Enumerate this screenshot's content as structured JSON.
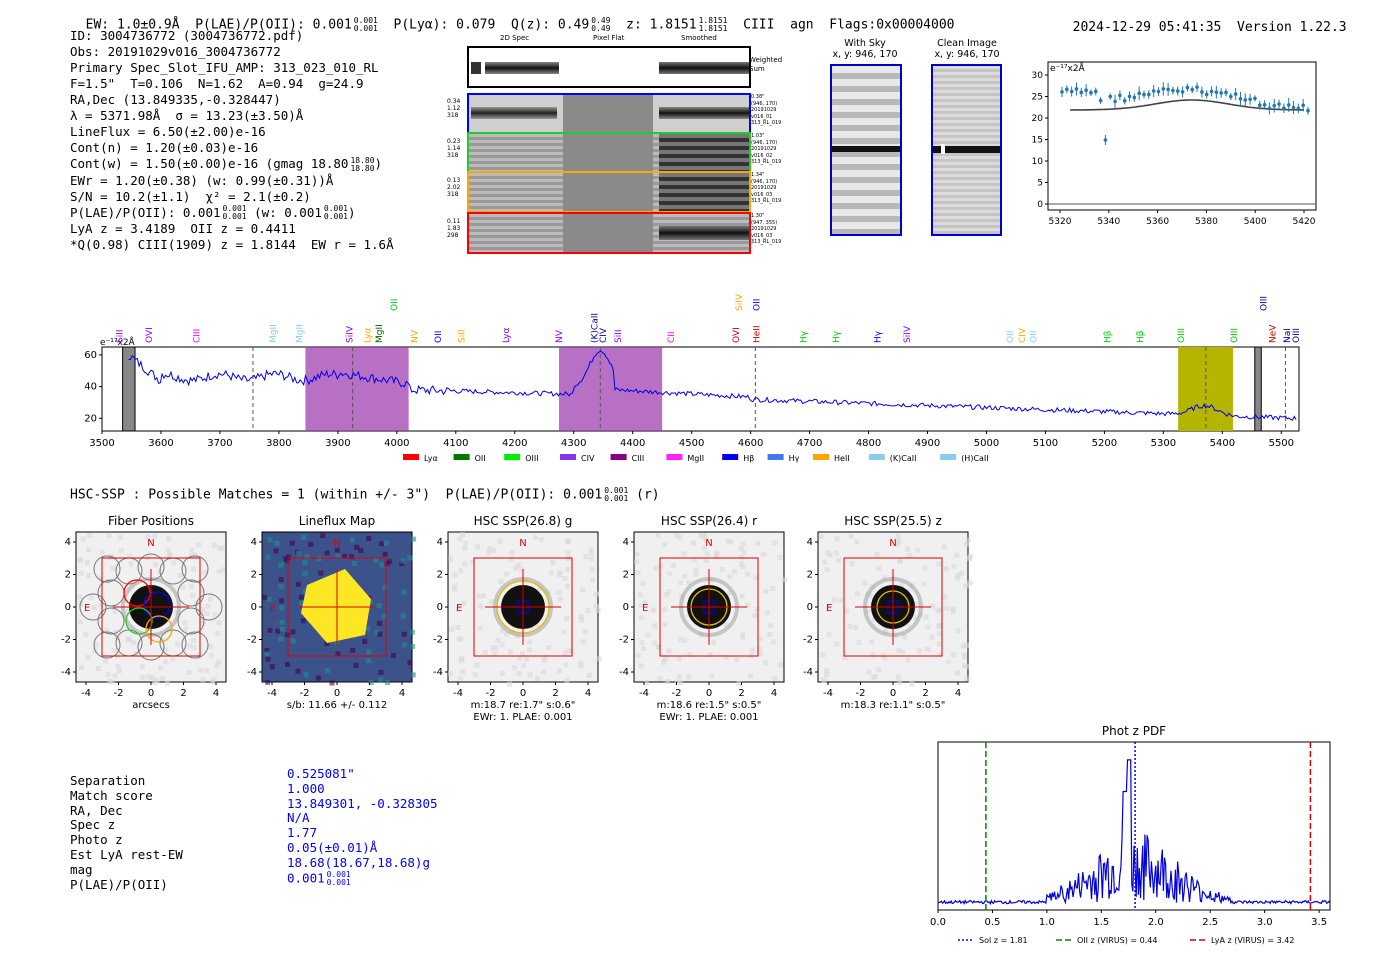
{
  "header": {
    "line": "EW: 1.0±0.9Å  P(LAE)/P(OII): 0.001 0.001 0.001  P(Lyα): 0.079  Q(z): 0.49 0.49 0.49  z: 1.8151 1.8151 1.8151  CIII  agn  Flags:0x00004000",
    "ew": "EW: 1.0±0.9Å",
    "plae": "P(LAE)/P(OII): 0.001",
    "plae_sup": "0.001",
    "plae_sub": "0.001",
    "plya": "P(Lyα): 0.079",
    "qz": "Q(z): 0.49",
    "qz_sup": "0.49",
    "qz_sub": "0.49",
    "z": "z: 1.8151",
    "z_sup": "1.8151",
    "z_sub": "1.8151",
    "line_id": "CIII",
    "cls": "agn",
    "flags": "Flags:0x00004000",
    "timestamp": "2024-12-29 05:41:35",
    "version": "Version 1.22.3"
  },
  "info": {
    "lines": [
      "ID: 3004736772 (3004736772.pdf)",
      "Obs: 20191029v016_3004736772",
      "Primary Spec_Slot_IFU_AMP: 313_023_010_RL",
      "F=1.5\"  T=0.106  N=1.62  A=0.94  g=24.9",
      "RA,Dec (13.849335,-0.328447)",
      "λ = 5371.98Å  σ = 13.23(±3.50)Å",
      "LineFlux = 6.50(±2.00)e-16",
      "Cont(n) = 1.20(±0.03)e-16",
      "Cont(w) = 1.50(±0.00)e-16 (gmag 18.80",
      "EWr = 1.20(±0.38) (w: 0.99(±0.31))Å",
      "S/N = 10.2(±1.1)  χ² = 2.1(±0.2)",
      "P(LAE)/P(OII): 0.001",
      "LyA z = 3.4189  OII z = 0.4411",
      "*Q(0.98) CIII(1909) z = 1.8144  EW r = 1.6Å"
    ],
    "gmag_sup": "18.80",
    "gmag_sub": "18.80",
    "plae_sup": "0.001",
    "plae_sub": "0.001",
    "plae_w": "(w: 0.001",
    "plae_w_sup": "0.001",
    "plae_w_sub": "0.001"
  },
  "cutouts": {
    "col_headers": [
      "2D Spec",
      "Pixel Flat",
      "Smoothed"
    ],
    "weighted_sum": "Weighted Sum",
    "rows": [
      {
        "left": [
          "0.34",
          "1.12",
          "318"
        ],
        "right": [
          "0.38\"",
          "(946, 170)",
          "20191029",
          "v016_01",
          "313_RL_019"
        ],
        "color": "#0000ff"
      },
      {
        "left": [
          "0.23",
          "1.14",
          "318"
        ],
        "right": [
          "1.03\"",
          "(946, 170)",
          "20191029",
          "v016_02",
          "313_RL_019"
        ],
        "color": "#22cc22"
      },
      {
        "left": [
          "0.13",
          "2.02",
          "318"
        ],
        "right": [
          "1.34\"",
          "(946, 170)",
          "20191029",
          "v016_03",
          "313_RL_019"
        ],
        "color": "#ffa500"
      },
      {
        "left": [
          "0.11",
          "1.83",
          "298"
        ],
        "right": [
          "1.30\"",
          "(947, 355)",
          "20191029",
          "v016_03",
          "313_RL_019"
        ],
        "color": "#ff0000"
      }
    ],
    "with_sky": "With Sky",
    "with_sky_xy": "x, y: 946, 170",
    "clean": "Clean Image",
    "clean_xy": "x, y: 946, 170"
  },
  "zoom_plot": {
    "ylabel": "e⁻¹⁷x2Å",
    "x_ticks": [
      "5320",
      "5340",
      "5360",
      "5380",
      "5400",
      "5420"
    ],
    "y_ticks": [
      "0",
      "5",
      "10",
      "15",
      "20",
      "25",
      "30"
    ]
  },
  "spectrum": {
    "ylabel": "e⁻¹⁷x2Å",
    "x_ticks": [
      "3500",
      "3600",
      "3700",
      "3800",
      "3900",
      "4000",
      "4100",
      "4200",
      "4300",
      "4400",
      "4500",
      "4600",
      "4700",
      "4800",
      "4900",
      "5000",
      "5100",
      "5200",
      "5300",
      "5400",
      "5500"
    ],
    "y_ticks": [
      "20",
      "40",
      "60"
    ],
    "line_labels": [
      {
        "t": "SiII",
        "c": "#8b00ff"
      },
      {
        "t": "OVI",
        "c": "#8b00ff"
      },
      {
        "t": "CIII",
        "c": "#ff00ff"
      },
      {
        "t": "MgII",
        "c": "#88ccee"
      },
      {
        "t": "MgII",
        "c": "#88ccee"
      },
      {
        "t": "SiIV",
        "c": "#8b00ff"
      },
      {
        "t": "Lyα",
        "c": "#ffa500"
      },
      {
        "t": "MgII",
        "c": "#006400"
      },
      {
        "t": "OII",
        "c": "#00cc00"
      },
      {
        "t": "NV",
        "c": "#ffa500"
      },
      {
        "t": "OII",
        "c": "#0000ff"
      },
      {
        "t": "SiII",
        "c": "#ffa500"
      },
      {
        "t": "Lyα",
        "c": "#8b00ff"
      },
      {
        "t": "NV",
        "c": "#8b00ff"
      },
      {
        "t": "(K)CaII",
        "c": "#0000aa"
      },
      {
        "t": "CIV",
        "c": "#0000aa"
      },
      {
        "t": "SiII",
        "c": "#8b00ff"
      },
      {
        "t": "CII",
        "c": "#ff00ff"
      },
      {
        "t": "OVI",
        "c": "#cc0000"
      },
      {
        "t": "SiIV",
        "c": "#ffa500"
      },
      {
        "t": "HeII",
        "c": "#cc0000"
      },
      {
        "t": "OII",
        "c": "#0000ff"
      },
      {
        "t": "Hγ",
        "c": "#00cc00"
      },
      {
        "t": "Hγ",
        "c": "#00cc00"
      },
      {
        "t": "Hγ",
        "c": "#0000ff"
      },
      {
        "t": "SiIV",
        "c": "#8b00ff"
      },
      {
        "t": "OII",
        "c": "#88ccee"
      },
      {
        "t": "CIV",
        "c": "#ffa500"
      },
      {
        "t": "OII",
        "c": "#88ccee"
      },
      {
        "t": "Hβ",
        "c": "#00cc00"
      },
      {
        "t": "Hβ",
        "c": "#00cc00"
      },
      {
        "t": "OIII",
        "c": "#00cc00"
      },
      {
        "t": "OIII",
        "c": "#00cc00"
      },
      {
        "t": "OIII",
        "c": "#0000aa"
      },
      {
        "t": "NeV",
        "c": "#cc0000"
      },
      {
        "t": "NaI",
        "c": "#0000aa"
      },
      {
        "t": "OIII",
        "c": "#0000aa"
      }
    ],
    "legend": [
      {
        "name": "Lyα",
        "color": "#ff0000"
      },
      {
        "name": "OII",
        "color": "#007700"
      },
      {
        "name": "OIII",
        "color": "#00ee00"
      },
      {
        "name": "CIV",
        "color": "#8833ee"
      },
      {
        "name": "CIII",
        "color": "#880088"
      },
      {
        "name": "MgII",
        "color": "#ff22ff"
      },
      {
        "name": "Hβ",
        "color": "#0000ee"
      },
      {
        "name": "Hγ",
        "color": "#4477ee"
      },
      {
        "name": "HeII",
        "color": "#ffa500"
      },
      {
        "name": "(K)CaII",
        "color": "#88ccee"
      },
      {
        "name": "(H)CaII",
        "color": "#88ccee"
      }
    ]
  },
  "hsc": {
    "title": "HSC-SSP : Possible Matches = 1 (within +/- 3\")  P(LAE)/P(OII): 0.001",
    "title_sup": "0.001",
    "title_sub": "0.001",
    "title_suffix": "(r)",
    "panels": [
      {
        "title": "Fiber Positions",
        "xlabel": "arcsecs",
        "sub": ""
      },
      {
        "title": "Lineflux Map",
        "xlabel": "",
        "sub": "s/b: 11.66 +/- 0.112"
      },
      {
        "title": "HSC SSP(26.8) g",
        "xlabel": "",
        "sub": "m:18.7  re:1.7\"  s:0.6\"",
        "sub2": "EWr: 1. PLAE: 0.001"
      },
      {
        "title": "HSC SSP(26.4) r",
        "xlabel": "",
        "sub": "m:18.6  re:1.5\"  s:0.5\"",
        "sub2": "EWr: 1. PLAE: 0.001"
      },
      {
        "title": "HSC SSP(25.5) z",
        "xlabel": "",
        "sub": "m:18.3  re:1.1\"  s:0.5\"",
        "sub2": ""
      }
    ],
    "ticks": [
      "-4",
      "-2",
      "0",
      "2",
      "4"
    ],
    "north": "N",
    "east": "E"
  },
  "match": {
    "labels": [
      "Separation",
      "Match score",
      "RA, Dec",
      "Spec z",
      "Photo z",
      "Est LyA rest-EW",
      "mag",
      "P(LAE)/P(OII)"
    ],
    "values": [
      "0.525081\"",
      "1.000",
      "13.849301, -0.328305",
      "N/A",
      "1.77",
      "0.05(±0.01)Å",
      "18.68(18.67,18.68)g",
      "0.001"
    ],
    "plae_sup": "0.001",
    "plae_sub": "0.001"
  },
  "photz": {
    "title": "Phot z PDF",
    "x_ticks": [
      "0.0",
      "0.5",
      "1.0",
      "1.5",
      "2.0",
      "2.5",
      "3.0",
      "3.5"
    ],
    "legend": [
      {
        "name": "Sol z = 1.81",
        "color": "#0000ff"
      },
      {
        "name": "OII z (VIRUS) = 0.44",
        "color": "#008800"
      },
      {
        "name": "LyA z (VIRUS) = 3.42",
        "color": "#dd0000"
      }
    ],
    "sol_z": 1.81,
    "oii_z": 0.44,
    "lya_z": 3.42
  }
}
